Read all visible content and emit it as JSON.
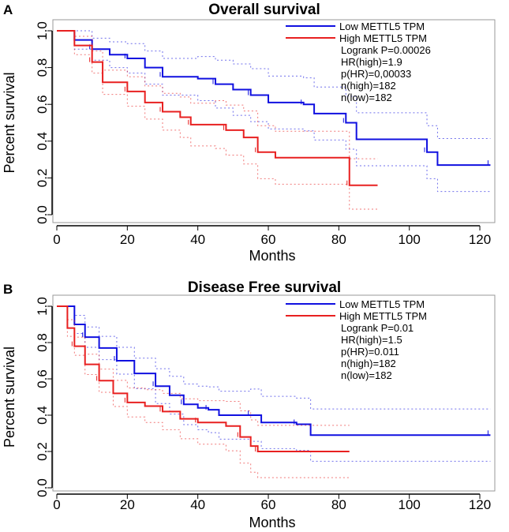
{
  "colors": {
    "low": "#1010e0",
    "high": "#e82020",
    "axis": "#000000"
  },
  "chart_data": [
    {
      "panel_label": "A",
      "type": "line",
      "step": true,
      "title": "Overall survival",
      "xlabel": "Months",
      "ylabel": "Percent survival",
      "xlim": [
        0,
        125
      ],
      "ylim": [
        0,
        1.0
      ],
      "xticks": [
        "0",
        "20",
        "40",
        "60",
        "80",
        "100",
        "120"
      ],
      "yticks": [
        "0.0",
        "0.2",
        "0.4",
        "0.6",
        "0.8",
        "1.0"
      ],
      "legend": {
        "placement": "top-right",
        "entries": [
          "Low METTL5 TPM",
          "High METTL5 TPM"
        ],
        "stats": [
          "Logrank P=0.00026",
          "HR(high)=1.9",
          "p(HR)=0,00033",
          "n(high)=182",
          "n(low)=182"
        ]
      },
      "series": [
        {
          "name": "Low METTL5 TPM",
          "color_key": "low",
          "x": [
            0,
            5,
            10,
            15,
            20,
            25,
            30,
            40,
            45,
            50,
            55,
            60,
            70,
            73,
            82,
            85,
            105,
            108,
            123
          ],
          "y": [
            1,
            0.95,
            0.9,
            0.87,
            0.85,
            0.8,
            0.75,
            0.74,
            0.71,
            0.68,
            0.65,
            0.61,
            0.6,
            0.55,
            0.5,
            0.41,
            0.34,
            0.27,
            0.27
          ]
        },
        {
          "name": "High METTL5 TPM",
          "color_key": "high",
          "x": [
            0,
            5,
            10,
            13,
            20,
            25,
            30,
            35,
            38,
            45,
            48,
            53,
            57,
            62,
            83,
            91
          ],
          "y": [
            1,
            0.92,
            0.83,
            0.72,
            0.67,
            0.61,
            0.56,
            0.53,
            0.49,
            0.49,
            0.46,
            0.42,
            0.34,
            0.31,
            0.16,
            0.16
          ]
        }
      ]
    },
    {
      "panel_label": "B",
      "type": "line",
      "step": true,
      "title": "Disease Free survival",
      "xlabel": "Months",
      "ylabel": "Percent survival",
      "xlim": [
        0,
        125
      ],
      "ylim": [
        0,
        1.0
      ],
      "xticks": [
        "0",
        "20",
        "40",
        "60",
        "80",
        "100",
        "120"
      ],
      "yticks": [
        "0.0",
        "0.2",
        "0.4",
        "0.6",
        "0.8",
        "1.0"
      ],
      "legend": {
        "placement": "top-right",
        "entries": [
          "Low METTL5 TPM",
          "High METTL5 TPM"
        ],
        "stats": [
          "Logrank P=0.01",
          "HR(high)=1.5",
          "p(HR)=0.011",
          "n(high)=182",
          "n(low)=182"
        ]
      },
      "series": [
        {
          "name": "Low METTL5 TPM",
          "color_key": "low",
          "x": [
            0,
            5,
            8,
            12,
            17,
            22,
            28,
            32,
            36,
            40,
            43,
            46,
            55,
            58,
            68,
            72,
            123
          ],
          "y": [
            1,
            0.9,
            0.83,
            0.77,
            0.7,
            0.63,
            0.56,
            0.51,
            0.46,
            0.44,
            0.43,
            0.4,
            0.4,
            0.36,
            0.35,
            0.29,
            0.29
          ]
        },
        {
          "name": "High METTL5 TPM",
          "color_key": "high",
          "x": [
            0,
            3,
            5,
            8,
            12,
            16,
            20,
            25,
            30,
            35,
            40,
            48,
            52,
            55,
            57,
            83
          ],
          "y": [
            1,
            0.88,
            0.78,
            0.68,
            0.59,
            0.52,
            0.47,
            0.45,
            0.42,
            0.38,
            0.36,
            0.34,
            0.28,
            0.23,
            0.2,
            0.2
          ]
        }
      ]
    }
  ]
}
